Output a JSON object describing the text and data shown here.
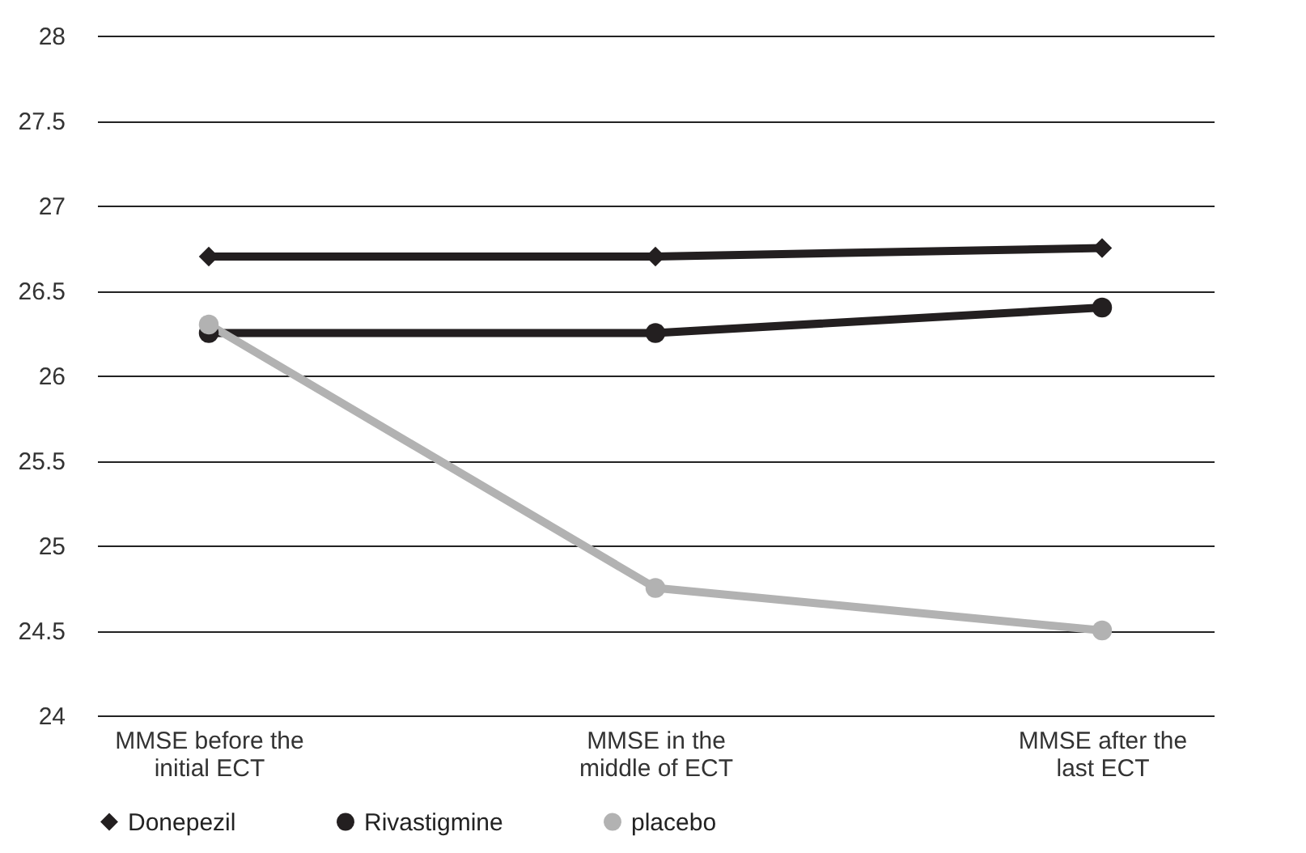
{
  "chart_data": {
    "type": "line",
    "categories": [
      "MMSE before the initial ECT",
      "MMSE in the middle of ECT",
      "MMSE after the last ECT"
    ],
    "series": [
      {
        "name": "Donepezil",
        "color": "#231f20",
        "marker": "diamond",
        "values": [
          26.7,
          26.7,
          26.75
        ]
      },
      {
        "name": "Rivastigmine",
        "color": "#231f20",
        "marker": "circle",
        "values": [
          26.25,
          26.25,
          26.4
        ]
      },
      {
        "name": "placebo",
        "color": "#b2b2b2",
        "marker": "circle",
        "values": [
          26.3,
          24.75,
          24.5
        ]
      }
    ],
    "ylim": [
      24,
      28
    ],
    "yticks": [
      24,
      24.5,
      25,
      25.5,
      26,
      26.5,
      27,
      27.5,
      28
    ],
    "grid": "y",
    "legend": "bottom"
  }
}
